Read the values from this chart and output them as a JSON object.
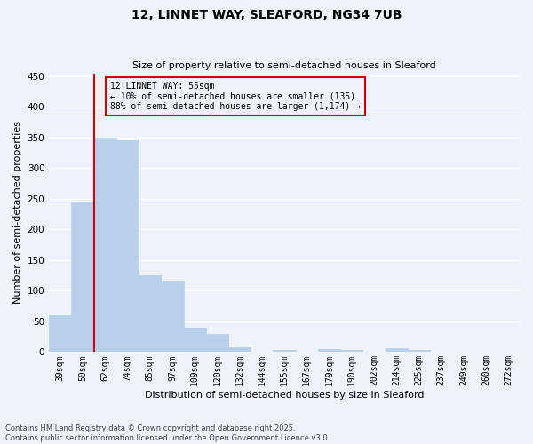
{
  "title": "12, LINNET WAY, SLEAFORD, NG34 7UB",
  "subtitle": "Size of property relative to semi-detached houses in Sleaford",
  "xlabel": "Distribution of semi-detached houses by size in Sleaford",
  "ylabel": "Number of semi-detached properties",
  "bar_labels": [
    "39sqm",
    "50sqm",
    "62sqm",
    "74sqm",
    "85sqm",
    "97sqm",
    "109sqm",
    "120sqm",
    "132sqm",
    "144sqm",
    "155sqm",
    "167sqm",
    "179sqm",
    "190sqm",
    "202sqm",
    "214sqm",
    "225sqm",
    "237sqm",
    "249sqm",
    "260sqm",
    "272sqm"
  ],
  "bar_values": [
    60,
    245,
    350,
    345,
    125,
    115,
    40,
    30,
    8,
    0,
    3,
    0,
    5,
    4,
    0,
    7,
    4,
    0,
    0,
    0,
    0
  ],
  "bar_color": "#b8d0ea",
  "bar_edge_color": "#b8d0ea",
  "vline_x": 1.5,
  "vline_color": "#cc0000",
  "annotation_title": "12 LINNET WAY: 55sqm",
  "annotation_line1": "← 10% of semi-detached houses are smaller (135)",
  "annotation_line2": "88% of semi-detached houses are larger (1,174) →",
  "annotation_box_color": "#cc0000",
  "ylim": [
    0,
    455
  ],
  "yticks": [
    0,
    50,
    100,
    150,
    200,
    250,
    300,
    350,
    400,
    450
  ],
  "footer_line1": "Contains HM Land Registry data © Crown copyright and database right 2025.",
  "footer_line2": "Contains public sector information licensed under the Open Government Licence v3.0.",
  "bg_color": "#eef2fb",
  "grid_color": "#ffffff"
}
